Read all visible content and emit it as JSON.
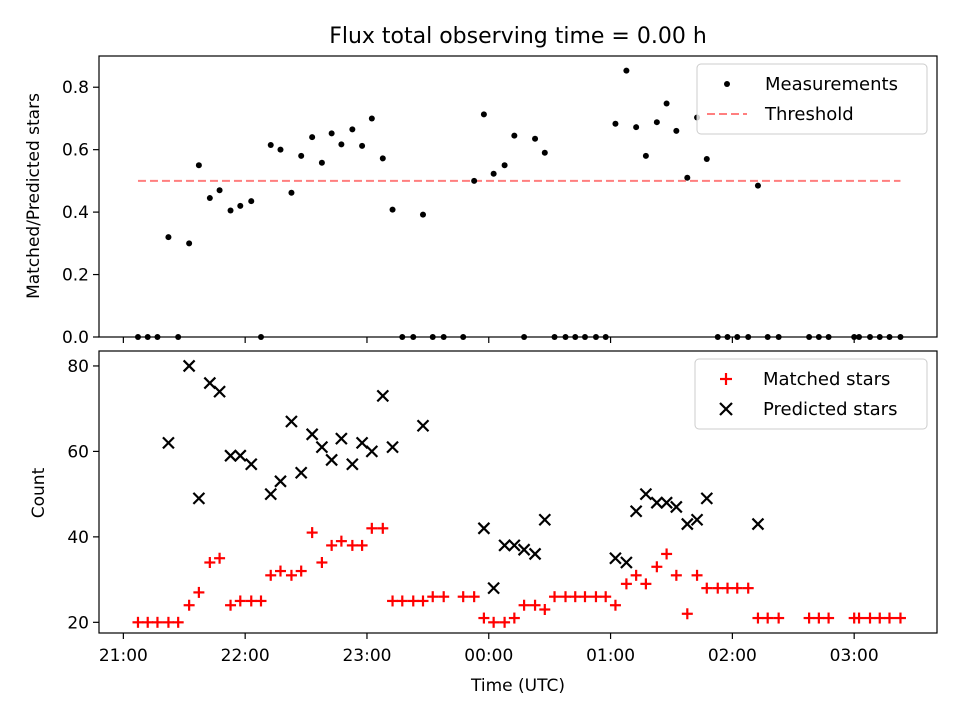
{
  "chart_data": [
    {
      "type": "scatter",
      "title": "Flux total observing time = 0.00 h",
      "xlabel": "",
      "ylabel": "Matched/Predicted stars",
      "ylim": [
        0,
        0.9
      ],
      "yticks": [
        "0.0",
        "0.2",
        "0.4",
        "0.6",
        "0.8"
      ],
      "x_tick_labels": [],
      "grid": false,
      "legend_position": "top-right",
      "legend": [
        {
          "label": "Measurements",
          "marker": "dot",
          "color": "#000000"
        },
        {
          "label": "Threshold",
          "marker": "dashed-line",
          "color": "#ff7f7f"
        }
      ],
      "threshold": {
        "value": 0.5,
        "x_start": 21.12,
        "x_end": 27.38,
        "color": "#ff7f7f"
      },
      "series": [
        {
          "marker": "dot",
          "color": "#000000",
          "x": [
            21.12,
            21.2,
            21.28,
            21.37,
            21.45,
            21.54,
            21.62,
            21.71,
            21.79,
            21.88,
            21.96,
            22.05,
            22.13,
            22.21,
            22.29,
            22.38,
            22.46,
            22.55,
            22.63,
            22.71,
            22.79,
            22.88,
            22.96,
            23.04,
            23.13,
            23.21,
            23.29,
            23.38,
            23.46,
            23.54,
            23.63,
            23.79,
            23.88,
            23.96,
            24.04,
            24.13,
            24.21,
            24.29,
            24.38,
            24.46,
            24.54,
            24.63,
            24.71,
            24.79,
            24.88,
            24.96,
            25.04,
            25.13,
            25.21,
            25.29,
            25.38,
            25.46,
            25.54,
            25.63,
            25.71,
            25.79,
            25.88,
            25.96,
            26.04,
            26.13,
            26.21,
            26.29,
            26.38,
            26.63,
            26.71,
            26.79,
            27.0,
            27.04,
            27.13,
            27.21,
            27.29,
            27.38
          ],
          "y": [
            0.0,
            0.0,
            0.0,
            0.32,
            0.0,
            0.3,
            0.55,
            0.445,
            0.47,
            0.405,
            0.42,
            0.435,
            0.0,
            0.615,
            0.6,
            0.462,
            0.58,
            0.64,
            0.558,
            0.652,
            0.617,
            0.665,
            0.612,
            0.7,
            0.572,
            0.408,
            0.0,
            0.0,
            0.392,
            0.0,
            0.0,
            0.0,
            0.5,
            0.713,
            0.523,
            0.55,
            0.645,
            0.0,
            0.635,
            0.59,
            0.0,
            0.0,
            0.0,
            0.0,
            0.0,
            0.0,
            0.683,
            0.853,
            0.672,
            0.58,
            0.688,
            0.748,
            0.66,
            0.51,
            0.703,
            0.57,
            0.0,
            0.0,
            0.0,
            0.0,
            0.485,
            0.0,
            0.0,
            0.0,
            0.0,
            0.0,
            0.0,
            0.0,
            0.0,
            0.0,
            0.0,
            0.0
          ]
        }
      ]
    },
    {
      "type": "scatter",
      "title": "",
      "xlabel": "Time (UTC)",
      "ylabel": "Count",
      "xlim": [
        20.8,
        27.68
      ],
      "ylim": [
        17.5,
        83.5
      ],
      "yticks": [
        "20",
        "40",
        "60",
        "80"
      ],
      "xticks": [
        {
          "value": 21.0,
          "label": "21:00"
        },
        {
          "value": 22.0,
          "label": "22:00"
        },
        {
          "value": 23.0,
          "label": "23:00"
        },
        {
          "value": 24.0,
          "label": "00:00"
        },
        {
          "value": 25.0,
          "label": "01:00"
        },
        {
          "value": 26.0,
          "label": "02:00"
        },
        {
          "value": 27.0,
          "label": "03:00"
        }
      ],
      "grid": false,
      "legend_position": "top-right",
      "series": [
        {
          "name": "Matched stars",
          "marker": "plus",
          "color": "#ff0000",
          "x": [
            21.12,
            21.2,
            21.28,
            21.37,
            21.45,
            21.54,
            21.62,
            21.71,
            21.79,
            21.88,
            21.96,
            22.05,
            22.13,
            22.21,
            22.29,
            22.38,
            22.46,
            22.55,
            22.63,
            22.71,
            22.79,
            22.88,
            22.96,
            23.04,
            23.13,
            23.21,
            23.29,
            23.38,
            23.46,
            23.54,
            23.63,
            23.79,
            23.88,
            23.96,
            24.04,
            24.13,
            24.21,
            24.29,
            24.38,
            24.46,
            24.54,
            24.63,
            24.71,
            24.79,
            24.88,
            24.96,
            25.04,
            25.13,
            25.21,
            25.29,
            25.38,
            25.46,
            25.54,
            25.63,
            25.71,
            25.79,
            25.88,
            25.96,
            26.04,
            26.13,
            26.21,
            26.29,
            26.38,
            26.63,
            26.71,
            26.79,
            27.0,
            27.04,
            27.13,
            27.21,
            27.29,
            27.38
          ],
          "y": [
            20,
            20,
            20,
            20,
            20,
            24,
            27,
            34,
            35,
            24,
            25,
            25,
            25,
            31,
            32,
            31,
            32,
            41,
            34,
            38,
            39,
            38,
            38,
            42,
            42,
            25,
            25,
            25,
            25,
            26,
            26,
            26,
            26,
            21,
            20,
            20,
            21,
            24,
            24,
            23,
            26,
            26,
            26,
            26,
            26,
            26,
            24,
            29,
            31,
            29,
            33,
            36,
            31,
            22,
            31,
            28,
            28,
            28,
            28,
            28,
            21,
            21,
            21,
            21,
            21,
            21,
            21,
            21,
            21,
            21,
            21,
            21
          ]
        },
        {
          "name": "Predicted stars",
          "marker": "x",
          "color": "#000000",
          "x": [
            21.37,
            21.54,
            21.62,
            21.71,
            21.79,
            21.88,
            21.96,
            22.05,
            22.21,
            22.29,
            22.38,
            22.46,
            22.55,
            22.63,
            22.71,
            22.79,
            22.88,
            22.96,
            23.04,
            23.13,
            23.21,
            23.46,
            23.96,
            24.04,
            24.13,
            24.21,
            24.29,
            24.38,
            24.46,
            25.04,
            25.13,
            25.21,
            25.29,
            25.38,
            25.46,
            25.54,
            25.63,
            25.71,
            25.79,
            26.21
          ],
          "y": [
            62,
            80,
            49,
            76,
            74,
            59,
            59,
            57,
            50,
            53,
            67,
            55,
            64,
            61,
            58,
            63,
            57,
            62,
            60,
            73,
            61,
            66,
            42,
            28,
            38,
            38,
            37,
            36,
            44,
            35,
            34,
            46,
            50,
            48,
            48,
            47,
            43,
            44,
            49,
            43
          ]
        }
      ]
    }
  ]
}
